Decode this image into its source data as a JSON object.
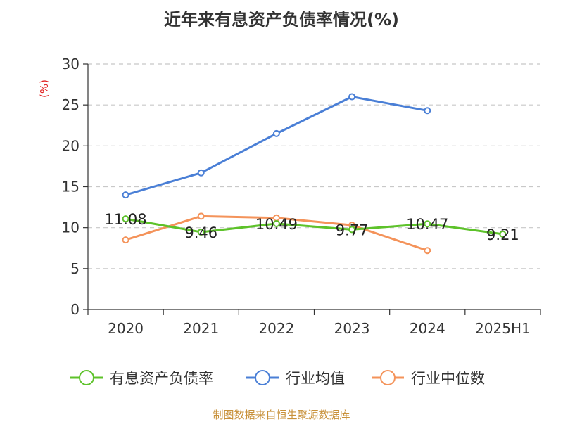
{
  "title": "近年来有息资产负债率情况(%)",
  "source": "制图数据来自恒生聚源数据库",
  "chart_data": {
    "type": "line",
    "title": "近年来有息资产负债率情况(%)",
    "ylabel": "(%)",
    "ylabel_color": "#e02020",
    "categories": [
      "2020",
      "2021",
      "2022",
      "2023",
      "2024",
      "2025H1"
    ],
    "ylim": [
      0,
      30
    ],
    "yticks": [
      0,
      5,
      10,
      15,
      20,
      25,
      30
    ],
    "grid": true,
    "legend_position": "bottom",
    "series": [
      {
        "name": "有息资产负债率",
        "color": "#5dc22a",
        "values": [
          11.08,
          9.46,
          10.49,
          9.77,
          10.47,
          9.21
        ],
        "labels": [
          "11.08",
          "9.46",
          "10.49",
          "9.77",
          "10.47",
          "9.21"
        ]
      },
      {
        "name": "行业均值",
        "color": "#4a7fd6",
        "values": [
          14.0,
          16.7,
          21.5,
          26.0,
          24.3,
          null
        ]
      },
      {
        "name": "行业中位数",
        "color": "#f4935a",
        "values": [
          8.5,
          11.4,
          11.2,
          10.3,
          7.2,
          null
        ]
      }
    ]
  }
}
